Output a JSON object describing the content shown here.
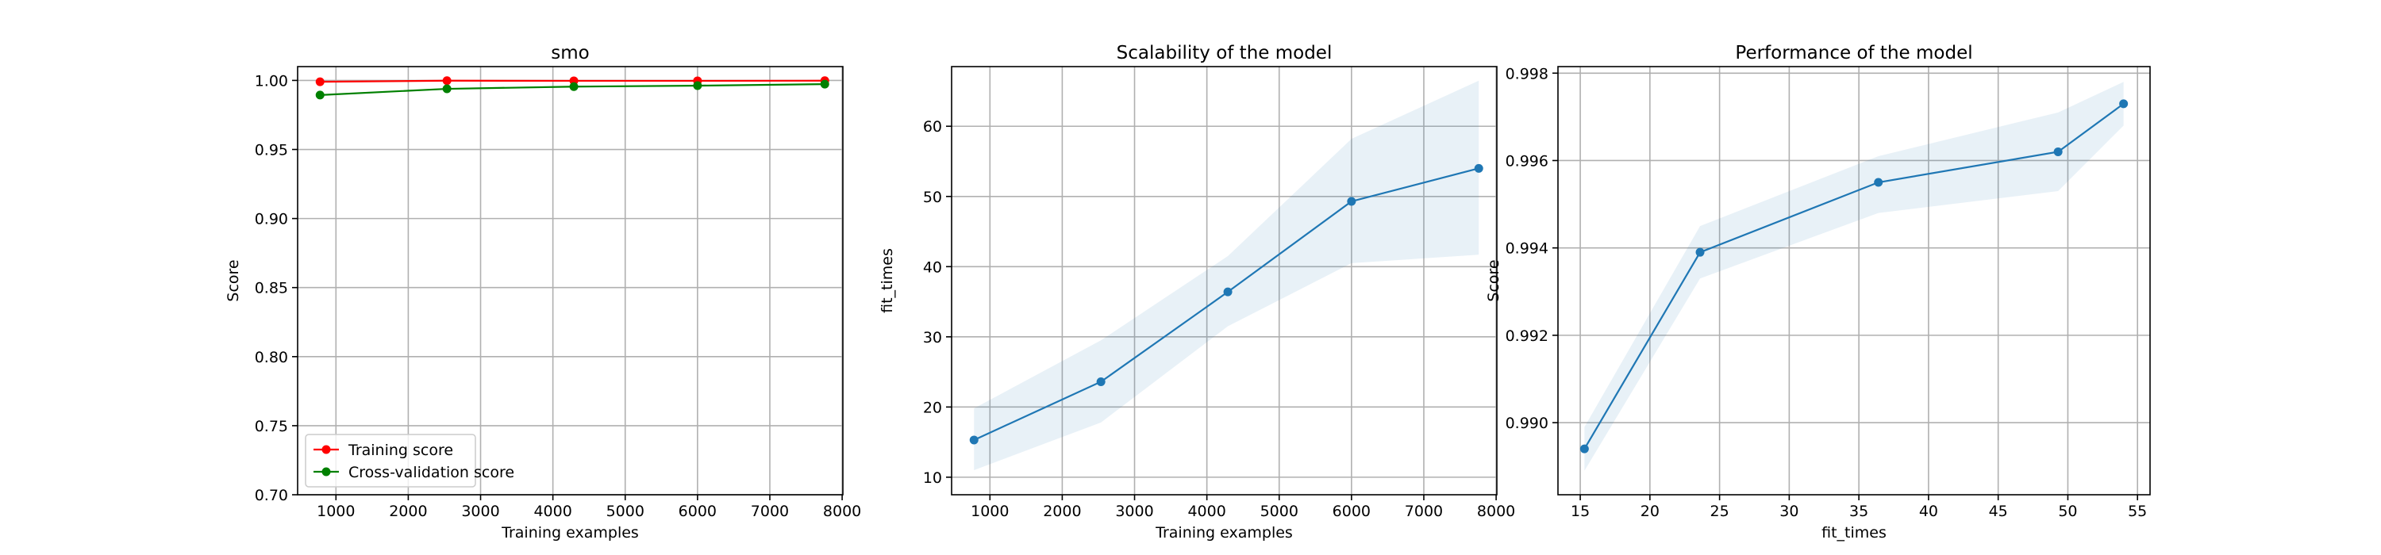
{
  "chart_data": [
    {
      "type": "line",
      "title": "smo",
      "xlabel": "Training examples",
      "ylabel": "Score",
      "xlim": [
        470,
        8010
      ],
      "ylim": [
        0.7,
        1.01
      ],
      "xticks": [
        1000,
        2000,
        3000,
        4000,
        5000,
        6000,
        7000,
        8000
      ],
      "yticks": [
        0.7,
        0.75,
        0.8,
        0.85,
        0.9,
        0.95,
        1.0
      ],
      "ytick_decimals": 2,
      "grid": true,
      "legend": "lower-left",
      "x": [
        780,
        2535,
        4290,
        6000,
        7760
      ],
      "series": [
        {
          "name": "Training score",
          "color": "#ff0000",
          "values": [
            0.999,
            0.9998,
            0.9997,
            0.9997,
            0.9998
          ],
          "band": [
            [
              0.9985,
              0.9995
            ],
            [
              0.9996,
              1.0
            ],
            [
              0.9995,
              0.9999
            ],
            [
              0.9995,
              0.9999
            ],
            [
              0.9996,
              1.0
            ]
          ]
        },
        {
          "name": "Cross-validation score",
          "color": "#008000",
          "values": [
            0.9894,
            0.9939,
            0.9955,
            0.9962,
            0.9973
          ],
          "band": [
            [
              0.989,
              0.99
            ],
            [
              0.9933,
              0.9945
            ],
            [
              0.9948,
              0.9961
            ],
            [
              0.9953,
              0.9971
            ],
            [
              0.9968,
              0.9978
            ]
          ]
        }
      ]
    },
    {
      "type": "line",
      "title": "Scalability of the model",
      "xlabel": "Training examples",
      "ylabel": "fit_times",
      "xlim": [
        470,
        8010
      ],
      "ylim": [
        7.5,
        68.5
      ],
      "xticks": [
        1000,
        2000,
        3000,
        4000,
        5000,
        6000,
        7000,
        8000
      ],
      "yticks": [
        10,
        20,
        30,
        40,
        50,
        60
      ],
      "ytick_decimals": 0,
      "grid": true,
      "x": [
        780,
        2535,
        4290,
        6000,
        7760
      ],
      "series": [
        {
          "name": "",
          "color": "#1f77b4",
          "values": [
            15.3,
            23.6,
            36.4,
            49.3,
            54.0
          ],
          "band": [
            [
              11.0,
              19.8
            ],
            [
              17.8,
              29.5
            ],
            [
              31.5,
              41.5
            ],
            [
              40.5,
              58.2
            ],
            [
              41.7,
              66.5
            ]
          ]
        }
      ]
    },
    {
      "type": "line",
      "title": "Performance of the model",
      "xlabel": "fit_times",
      "ylabel": "Score",
      "xlim": [
        13.4,
        55.9
      ],
      "ylim": [
        0.98835,
        0.99815
      ],
      "xticks": [
        15,
        20,
        25,
        30,
        35,
        40,
        45,
        50,
        55
      ],
      "yticks": [
        0.99,
        0.992,
        0.994,
        0.996,
        0.998
      ],
      "ytick_decimals": 3,
      "grid": true,
      "x": [
        15.3,
        23.6,
        36.4,
        49.3,
        54.0
      ],
      "series": [
        {
          "name": "",
          "color": "#1f77b4",
          "values": [
            0.9894,
            0.9939,
            0.9955,
            0.9962,
            0.9973
          ],
          "band": [
            [
              0.9889,
              0.9899
            ],
            [
              0.9933,
              0.9945
            ],
            [
              0.9948,
              0.9961
            ],
            [
              0.9953,
              0.9971
            ],
            [
              0.9968,
              0.9978
            ]
          ]
        }
      ]
    }
  ]
}
